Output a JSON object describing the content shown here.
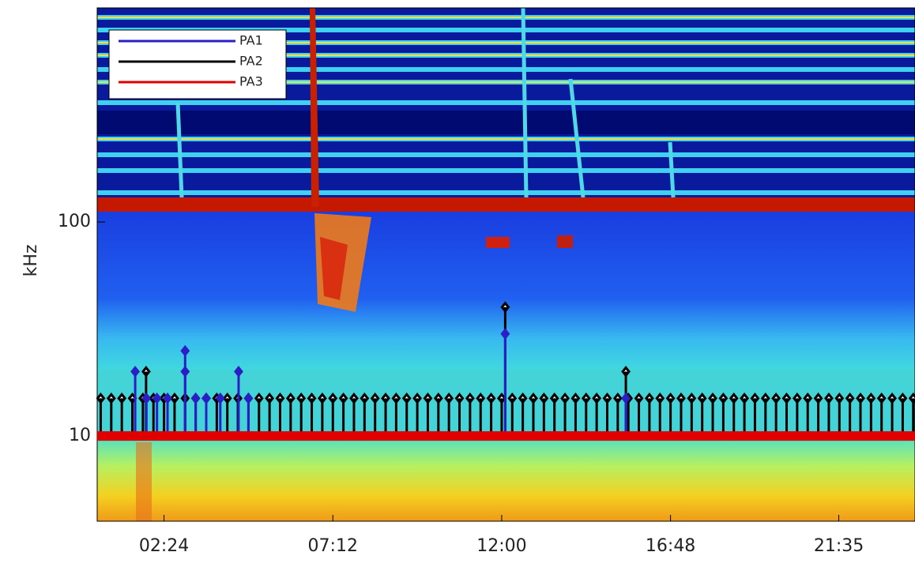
{
  "chart_data": {
    "type": "stem",
    "y_label": "kHz",
    "xlim": [
      0.5,
      23.75
    ],
    "xticks": [
      {
        "value": 2.4,
        "label": "02:24"
      },
      {
        "value": 7.2,
        "label": "07:12"
      },
      {
        "value": 12.0,
        "label": "12:00"
      },
      {
        "value": 16.8,
        "label": "16:48"
      },
      {
        "value": 21.583,
        "label": "21:35"
      }
    ],
    "ylim": [
      4,
      1000
    ],
    "yticks": [
      10,
      100
    ],
    "ylog": true,
    "legend": "upper left",
    "series": [
      {
        "name": "PA1",
        "color": "#2a1fc4",
        "style": "stem",
        "x": [
          1.58,
          1.9,
          2.2,
          2.5,
          3.0,
          3.0,
          3.3,
          3.6,
          4.0,
          4.52,
          4.8,
          12.1,
          15.53
        ],
        "values": [
          20,
          15,
          15,
          15,
          25,
          20,
          15,
          15,
          15,
          20,
          15,
          30,
          15
        ]
      },
      {
        "name": "PA2",
        "color": "#000000",
        "style": "stem",
        "x": [
          0.6,
          0.9,
          1.2,
          1.5,
          1.8,
          2.1,
          2.4,
          2.7,
          3.0,
          3.3,
          3.6,
          3.9,
          4.2,
          4.5,
          4.8,
          5.1,
          5.4,
          5.7,
          6.0,
          6.3,
          6.6,
          6.9,
          7.2,
          7.5,
          7.8,
          8.1,
          8.4,
          8.7,
          9.0,
          9.3,
          9.6,
          9.9,
          10.2,
          10.5,
          10.8,
          11.1,
          11.4,
          11.7,
          12.0,
          12.3,
          12.6,
          12.9,
          13.2,
          13.5,
          13.8,
          14.1,
          14.4,
          14.7,
          15.0,
          15.3,
          15.6,
          15.9,
          16.2,
          16.5,
          16.8,
          17.1,
          17.4,
          17.7,
          18.0,
          18.3,
          18.6,
          18.9,
          19.2,
          19.5,
          19.8,
          20.1,
          20.4,
          20.7,
          21.0,
          21.3,
          21.6,
          21.9,
          22.2,
          22.5,
          22.8,
          23.1,
          23.4,
          23.7,
          1.89,
          12.1,
          15.53
        ],
        "values": [
          15,
          15,
          15,
          15,
          15,
          15,
          15,
          15,
          15,
          15,
          15,
          15,
          15,
          15,
          15,
          15,
          15,
          15,
          15,
          15,
          15,
          15,
          15,
          15,
          15,
          15,
          15,
          15,
          15,
          15,
          15,
          15,
          15,
          15,
          15,
          15,
          15,
          15,
          15,
          15,
          15,
          15,
          15,
          15,
          15,
          15,
          15,
          15,
          15,
          15,
          15,
          15,
          15,
          15,
          15,
          15,
          15,
          15,
          15,
          15,
          15,
          15,
          15,
          15,
          15,
          15,
          15,
          15,
          15,
          15,
          15,
          15,
          15,
          15,
          15,
          15,
          15,
          15,
          20,
          40,
          20
        ]
      },
      {
        "name": "PA3",
        "color": "#e00000",
        "style": "line",
        "x": [
          0.5,
          23.75
        ],
        "values": [
          10,
          10
        ]
      }
    ]
  }
}
